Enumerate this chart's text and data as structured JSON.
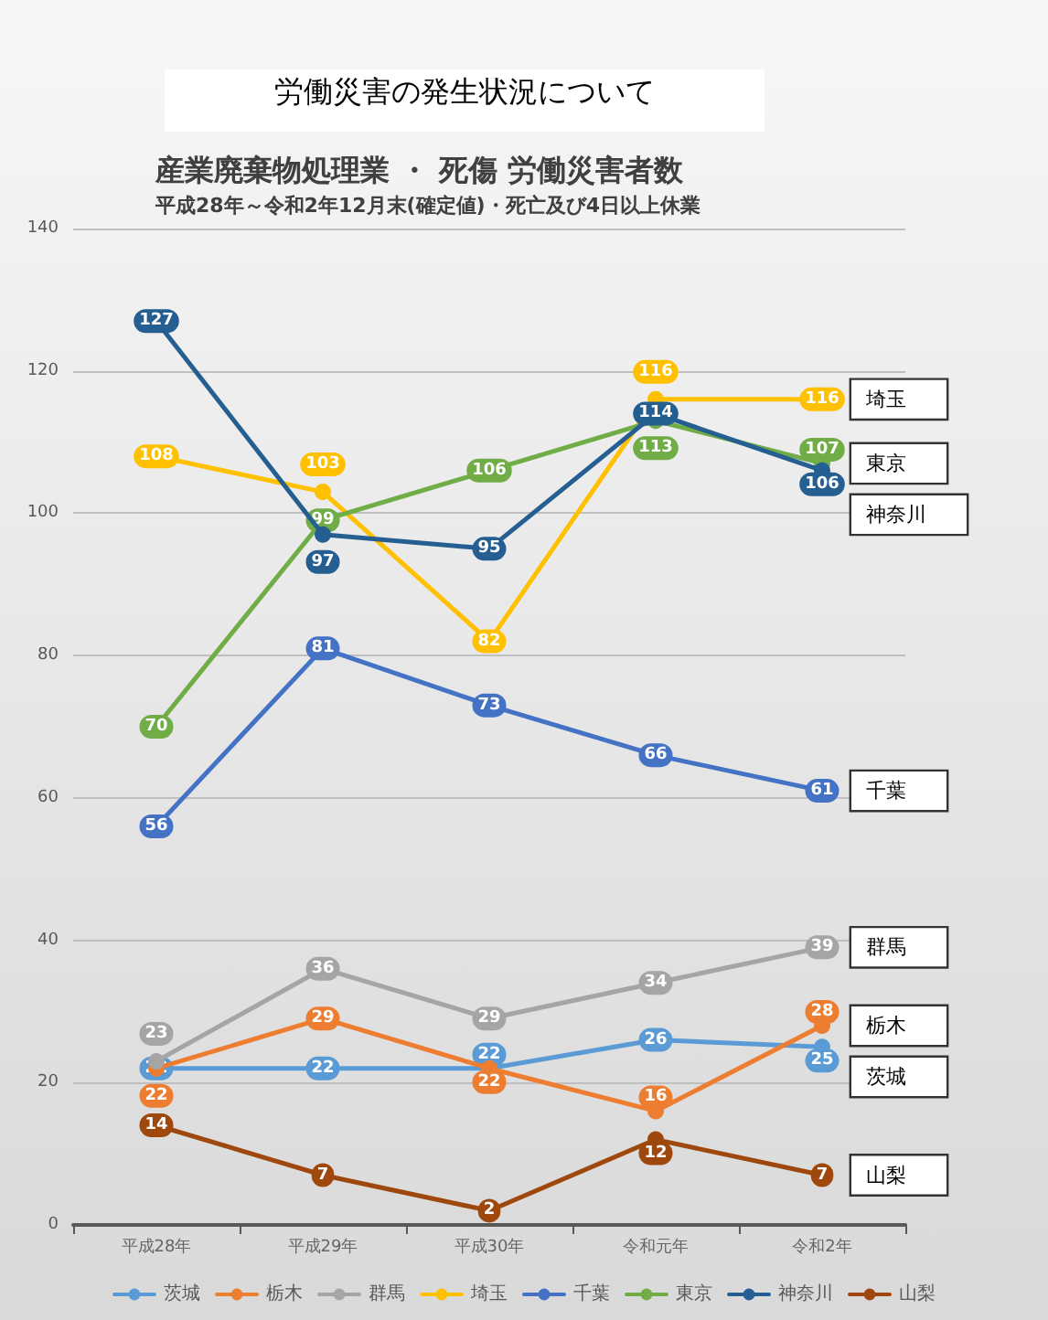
{
  "chart_data": {
    "type": "line",
    "title": "労働災害の発生状況について",
    "subtitle": "産業廃棄物処理業 ・ 死傷 労働災害者数",
    "annotations": [
      "平成28年～令和2年12月末(確定値)・死亡及び4日以上休業"
    ],
    "categories": [
      "平成28年",
      "平成29年",
      "平成30年",
      "令和元年",
      "令和2年"
    ],
    "series": [
      {
        "name": "茨城",
        "color": "#5b9bd5",
        "values": [
          22,
          22,
          22,
          26,
          25
        ]
      },
      {
        "name": "栃木",
        "color": "#ed7d31",
        "values": [
          22,
          29,
          22,
          16,
          28
        ]
      },
      {
        "name": "群馬",
        "color": "#a5a5a5",
        "values": [
          23,
          36,
          29,
          34,
          39
        ]
      },
      {
        "name": "埼玉",
        "color": "#ffc000",
        "values": [
          108,
          103,
          82,
          116,
          116
        ]
      },
      {
        "name": "千葉",
        "color": "#4472c4",
        "values": [
          56,
          81,
          73,
          66,
          61
        ]
      },
      {
        "name": "東京",
        "color": "#70ad47",
        "values": [
          70,
          99,
          106,
          113,
          107
        ]
      },
      {
        "name": "神奈川",
        "color": "#255e91",
        "values": [
          127,
          97,
          95,
          114,
          106
        ]
      },
      {
        "name": "山梨",
        "color": "#9e480e",
        "values": [
          14,
          7,
          2,
          12,
          7
        ]
      }
    ],
    "ylim": [
      0,
      140
    ],
    "yticks": [
      0,
      20,
      40,
      60,
      80,
      100,
      120,
      140
    ],
    "grid": "y",
    "legend": "bottom",
    "data_labels": true,
    "marker": "circle",
    "line_style": "solid"
  }
}
